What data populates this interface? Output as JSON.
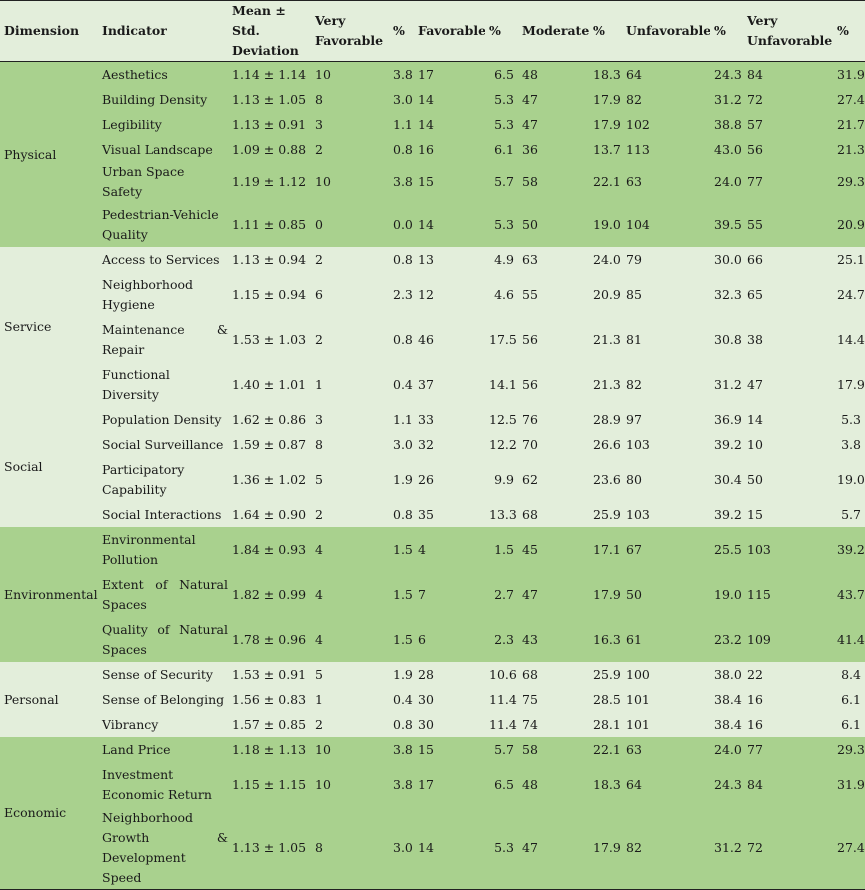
{
  "headers": {
    "dimension": "Dimension",
    "indicator": "Indicator",
    "mean": "Mean ± Std. Deviation",
    "very_favorable": "Very Favorable",
    "pct1": "%",
    "favorable": "Favorable",
    "pct2": "%",
    "moderate": "Moderate",
    "pct3": "%",
    "unfavorable": "Unfavorable",
    "pct4": "%",
    "very_unfavorable": "Very Unfavorable",
    "pct5": "%"
  },
  "dimensions": {
    "physical": "Physical",
    "service": "Service",
    "social": "Social",
    "environmental": "Environmental",
    "personal": "Personal",
    "economic": "Economic"
  },
  "rows": [
    {
      "indicator": "Aesthetics",
      "mean": "1.14 ± 1.14",
      "vf": "10",
      "vf_pct": "3.8",
      "f": "17",
      "f_pct": "6.5",
      "m": "48",
      "m_pct": "18.3",
      "u": "64",
      "u_pct": "24.3",
      "vu": "84",
      "vu_pct": "31.9"
    },
    {
      "indicator": "Building Density",
      "mean": "1.13 ± 1.05",
      "vf": "8",
      "vf_pct": "3.0",
      "f": "14",
      "f_pct": "5.3",
      "m": "47",
      "m_pct": "17.9",
      "u": "82",
      "u_pct": "31.2",
      "vu": "72",
      "vu_pct": "27.4"
    },
    {
      "indicator": "Legibility",
      "mean": "1.13 ± 0.91",
      "vf": "3",
      "vf_pct": "1.1",
      "f": "14",
      "f_pct": "5.3",
      "m": "47",
      "m_pct": "17.9",
      "u": "102",
      "u_pct": "38.8",
      "vu": "57",
      "vu_pct": "21.7"
    },
    {
      "indicator": "Visual Landscape",
      "mean": "1.09 ± 0.88",
      "vf": "2",
      "vf_pct": "0.8",
      "f": "16",
      "f_pct": "6.1",
      "m": "36",
      "m_pct": "13.7",
      "u": "113",
      "u_pct": "43.0",
      "vu": "56",
      "vu_pct": "21.3"
    },
    {
      "indicator": "Urban Space Safety",
      "mean": "1.19 ± 1.12",
      "vf": "10",
      "vf_pct": "3.8",
      "f": "15",
      "f_pct": "5.7",
      "m": "58",
      "m_pct": "22.1",
      "u": "63",
      "u_pct": "24.0",
      "vu": "77",
      "vu_pct": "29.3"
    },
    {
      "indicator": "Pedestrian-Vehicle Quality",
      "mean": "1.11 ± 0.85",
      "vf": "0",
      "vf_pct": "0.0",
      "f": "14",
      "f_pct": "5.3",
      "m": "50",
      "m_pct": "19.0",
      "u": "104",
      "u_pct": "39.5",
      "vu": "55",
      "vu_pct": "20.9"
    },
    {
      "indicator": "Access to Services",
      "mean": "1.13 ± 0.94",
      "vf": "2",
      "vf_pct": "0.8",
      "f": "13",
      "f_pct": "4.9",
      "m": "63",
      "m_pct": "24.0",
      "u": "79",
      "u_pct": "30.0",
      "vu": "66",
      "vu_pct": "25.1"
    },
    {
      "indicator": "Neighborhood Hygiene",
      "mean": "1.15 ± 0.94",
      "vf": "6",
      "vf_pct": "2.3",
      "f": "12",
      "f_pct": "4.6",
      "m": "55",
      "m_pct": "20.9",
      "u": "85",
      "u_pct": "32.3",
      "vu": "65",
      "vu_pct": "24.7"
    },
    {
      "indicator": "Maintenance & Repair",
      "mean": "1.53 ± 1.03",
      "vf": "2",
      "vf_pct": "0.8",
      "f": "46",
      "f_pct": "17.5",
      "m": "56",
      "m_pct": "21.3",
      "u": "81",
      "u_pct": "30.8",
      "vu": "38",
      "vu_pct": "14.4"
    },
    {
      "indicator": "Functional Diversity",
      "mean": "1.40 ± 1.01",
      "vf": "1",
      "vf_pct": "0.4",
      "f": "37",
      "f_pct": "14.1",
      "m": "56",
      "m_pct": "21.3",
      "u": "82",
      "u_pct": "31.2",
      "vu": "47",
      "vu_pct": "17.9"
    },
    {
      "indicator": "Population Density",
      "mean": "1.62 ± 0.86",
      "vf": "3",
      "vf_pct": "1.1",
      "f": "33",
      "f_pct": "12.5",
      "m": "76",
      "m_pct": "28.9",
      "u": "97",
      "u_pct": "36.9",
      "vu": "14",
      "vu_pct": "5.3"
    },
    {
      "indicator": "Social Surveillance",
      "mean": "1.59 ± 0.87",
      "vf": "8",
      "vf_pct": "3.0",
      "f": "32",
      "f_pct": "12.2",
      "m": "70",
      "m_pct": "26.6",
      "u": "103",
      "u_pct": "39.2",
      "vu": "10",
      "vu_pct": "3.8"
    },
    {
      "indicator": "Participatory Capability",
      "mean": "1.36 ± 1.02",
      "vf": "5",
      "vf_pct": "1.9",
      "f": "26",
      "f_pct": "9.9",
      "m": "62",
      "m_pct": "23.6",
      "u": "80",
      "u_pct": "30.4",
      "vu": "50",
      "vu_pct": "19.0"
    },
    {
      "indicator": "Social Interactions",
      "mean": "1.64 ± 0.90",
      "vf": "2",
      "vf_pct": "0.8",
      "f": "35",
      "f_pct": "13.3",
      "m": "68",
      "m_pct": "25.9",
      "u": "103",
      "u_pct": "39.2",
      "vu": "15",
      "vu_pct": "5.7"
    },
    {
      "indicator": "Environmental Pollution",
      "mean": "1.84 ± 0.93",
      "vf": "4",
      "vf_pct": "1.5",
      "f": "4",
      "f_pct": "1.5",
      "m": "45",
      "m_pct": "17.1",
      "u": "67",
      "u_pct": "25.5",
      "vu": "103",
      "vu_pct": "39.2"
    },
    {
      "indicator": "Extent of Natural Spaces",
      "mean": "1.82 ± 0.99",
      "vf": "4",
      "vf_pct": "1.5",
      "f": "7",
      "f_pct": "2.7",
      "m": "47",
      "m_pct": "17.9",
      "u": "50",
      "u_pct": "19.0",
      "vu": "115",
      "vu_pct": "43.7"
    },
    {
      "indicator": "Quality of Natural Spaces",
      "mean": "1.78 ± 0.96",
      "vf": "4",
      "vf_pct": "1.5",
      "f": "6",
      "f_pct": "2.3",
      "m": "43",
      "m_pct": "16.3",
      "u": "61",
      "u_pct": "23.2",
      "vu": "109",
      "vu_pct": "41.4"
    },
    {
      "indicator": "Sense of Security",
      "mean": "1.53 ± 0.91",
      "vf": "5",
      "vf_pct": "1.9",
      "f": "28",
      "f_pct": "10.6",
      "m": "68",
      "m_pct": "25.9",
      "u": "100",
      "u_pct": "38.0",
      "vu": "22",
      "vu_pct": "8.4"
    },
    {
      "indicator": "Sense of Belonging",
      "mean": "1.56 ± 0.83",
      "vf": "1",
      "vf_pct": "0.4",
      "f": "30",
      "f_pct": "11.4",
      "m": "75",
      "m_pct": "28.5",
      "u": "101",
      "u_pct": "38.4",
      "vu": "16",
      "vu_pct": "6.1"
    },
    {
      "indicator": "Vibrancy",
      "mean": "1.57 ± 0.85",
      "vf": "2",
      "vf_pct": "0.8",
      "f": "30",
      "f_pct": "11.4",
      "m": "74",
      "m_pct": "28.1",
      "u": "101",
      "u_pct": "38.4",
      "vu": "16",
      "vu_pct": "6.1"
    },
    {
      "indicator": "Land Price",
      "mean": "1.18 ± 1.13",
      "vf": "10",
      "vf_pct": "3.8",
      "f": "15",
      "f_pct": "5.7",
      "m": "58",
      "m_pct": "22.1",
      "u": "63",
      "u_pct": "24.0",
      "vu": "77",
      "vu_pct": "29.3"
    },
    {
      "indicator": "Investment Economic Return",
      "mean": "1.15 ± 1.15",
      "vf": "10",
      "vf_pct": "3.8",
      "f": "17",
      "f_pct": "6.5",
      "m": "48",
      "m_pct": "18.3",
      "u": "64",
      "u_pct": "24.3",
      "vu": "84",
      "vu_pct": "31.9"
    },
    {
      "indicator": "Neighborhood Growth & Development Speed",
      "mean": "1.13 ± 1.05",
      "vf": "8",
      "vf_pct": "3.0",
      "f": "14",
      "f_pct": "5.3",
      "m": "47",
      "m_pct": "17.9",
      "u": "82",
      "u_pct": "31.2",
      "vu": "72",
      "vu_pct": "27.4"
    }
  ]
}
